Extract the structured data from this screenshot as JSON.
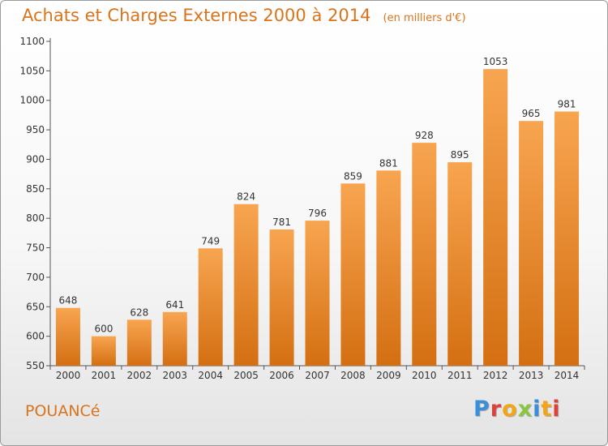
{
  "chart_data": {
    "type": "bar",
    "title": "Achats et Charges Externes 2000 à 2014",
    "subtitle": "(en milliers d'€)",
    "categories": [
      "2000",
      "2001",
      "2002",
      "2003",
      "2004",
      "2005",
      "2006",
      "2007",
      "2008",
      "2009",
      "2010",
      "2011",
      "2012",
      "2013",
      "2014"
    ],
    "values": [
      648,
      600,
      628,
      641,
      749,
      824,
      781,
      796,
      859,
      881,
      928,
      895,
      1053,
      965,
      981
    ],
    "yticks": [
      550,
      600,
      650,
      700,
      750,
      800,
      850,
      900,
      950,
      1000,
      1050,
      1100
    ],
    "ylim": [
      550,
      1100
    ],
    "grid": false,
    "colors": {
      "bar_top": "#f8a550",
      "bar_bottom": "#d46f12",
      "axis": "#555555",
      "text": "#333333",
      "accent": "#d9741c"
    }
  },
  "footer": {
    "city": "POUANCé",
    "logo_letters": [
      "P",
      "r",
      "o",
      "x",
      "i",
      "t",
      "i"
    ],
    "logo_colors": [
      "#3a8fd8",
      "#e0403a",
      "#f2a516",
      "#8cc63f",
      "#3a8fd8",
      "#f2a516",
      "#e0403a"
    ]
  }
}
